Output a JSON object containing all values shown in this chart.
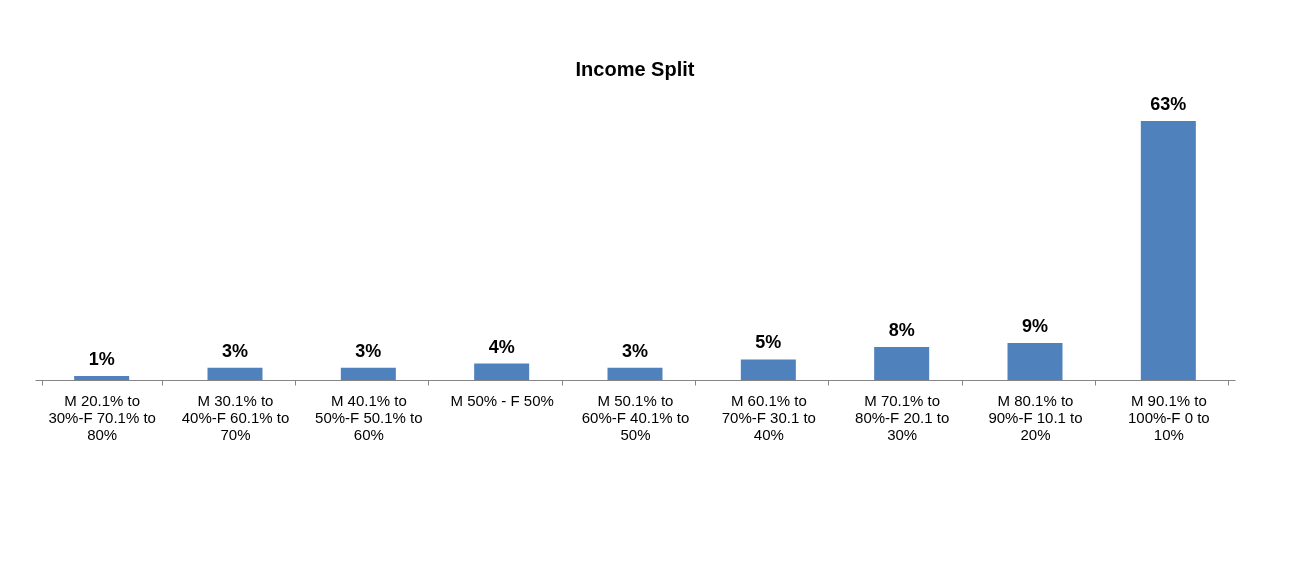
{
  "chart_data": {
    "type": "bar",
    "title": "Income Split",
    "categories": [
      "M 20.1% to 30%-F 70.1% to 80%",
      "M 30.1% to 40%-F 60.1% to 70%",
      "M 40.1% to 50%-F 50.1% to 60%",
      "M 50% - F 50%",
      "M 50.1% to 60%-F 40.1% to 50%",
      "M 60.1% to 70%-F 30.1 to 40%",
      "M 70.1% to 80%-F 20.1 to 30%",
      "M 80.1% to 90%-F 10.1 to 20%",
      "M 90.1% to 100%-F 0 to 10%"
    ],
    "values": [
      1,
      3,
      3,
      4,
      3,
      5,
      8,
      9,
      63
    ],
    "value_labels": [
      "1%",
      "3%",
      "3%",
      "4%",
      "3%",
      "5%",
      "8%",
      "9%",
      "63%"
    ],
    "color": "#4f81bd"
  }
}
